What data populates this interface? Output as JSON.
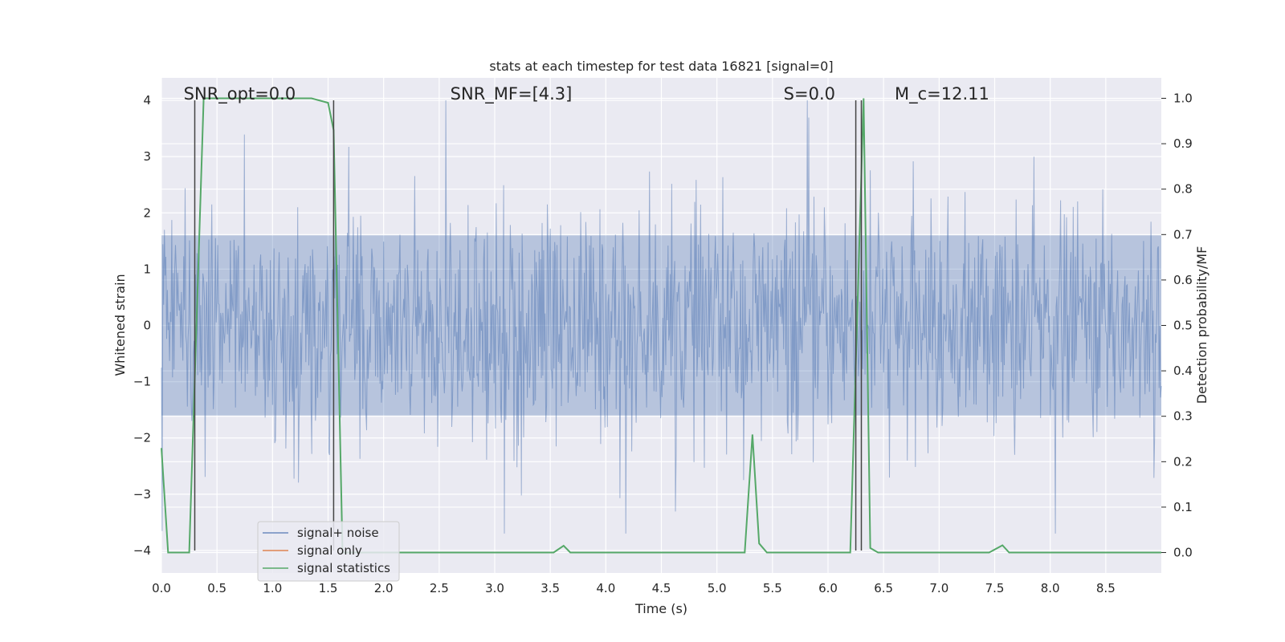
{
  "chart_data": {
    "type": "line",
    "title": "stats at each timestep for test data 16821 [signal=0]",
    "xlabel": "Time (s)",
    "ylabel": "Whitened strain",
    "ylabel_right": "Detection probability/MF",
    "xlim": [
      0.0,
      9.0
    ],
    "ylim": [
      -4.4,
      4.4
    ],
    "ylim_right": [
      -0.045,
      1.045
    ],
    "x_ticks": [
      0.0,
      0.5,
      1.0,
      1.5,
      2.0,
      2.5,
      3.0,
      3.5,
      4.0,
      4.5,
      5.0,
      5.5,
      6.0,
      6.5,
      7.0,
      7.5,
      8.0,
      8.5
    ],
    "x_tick_labels": [
      "0.0",
      "0.5",
      "1.0",
      "1.5",
      "2.0",
      "2.5",
      "3.0",
      "3.5",
      "4.0",
      "4.5",
      "5.0",
      "5.5",
      "6.0",
      "6.5",
      "7.0",
      "7.5",
      "8.0",
      "8.5"
    ],
    "y_ticks": [
      4,
      3,
      2,
      1,
      0,
      -1,
      -2,
      -3,
      -4
    ],
    "y_tick_labels": [
      "4",
      "3",
      "2",
      "1",
      "0",
      "−1",
      "−2",
      "−3",
      "−4"
    ],
    "y_right_ticks": [
      1.0,
      0.9,
      0.8,
      0.7,
      0.6,
      0.5,
      0.4,
      0.3,
      0.2,
      0.1,
      0.0
    ],
    "y_right_tick_labels": [
      "1.0",
      "0.9",
      "0.8",
      "0.7",
      "0.6",
      "0.5",
      "0.4",
      "0.3",
      "0.2",
      "0.1",
      "0.0"
    ],
    "grid": true,
    "legend_position": "lower-left",
    "annotations": [
      {
        "text": "SNR_opt=0.0",
        "x": 0.2
      },
      {
        "text": "SNR_MF=[4.3]",
        "x": 2.6
      },
      {
        "text": "S=0.0",
        "x": 5.6
      },
      {
        "text": "M_c=12.11",
        "x": 6.6
      }
    ],
    "annotation_y": 4.0,
    "vertical_markers": [
      0.3,
      1.55,
      6.25,
      6.3
    ],
    "series": [
      {
        "name": "signal+ noise",
        "color": "#4c72b0",
        "axis": "left",
        "style": "dense-noise",
        "sample_rate": 150,
        "band_typical": [
          -1.6,
          1.6
        ],
        "peak_range": [
          -3.7,
          4.0
        ]
      },
      {
        "name": "signal only",
        "color": "#dd8452",
        "axis": "left",
        "x": [],
        "y": []
      },
      {
        "name": "signal statistics",
        "color": "#55a868",
        "axis": "right",
        "x": [
          0.0,
          0.06,
          0.25,
          0.38,
          1.35,
          1.5,
          1.55,
          1.63,
          3.53,
          3.62,
          3.68,
          5.25,
          5.32,
          5.38,
          5.45,
          6.2,
          6.32,
          6.38,
          6.45,
          7.45,
          7.57,
          7.63,
          9.0
        ],
        "y": [
          0.23,
          0.0,
          0.0,
          1.0,
          1.0,
          0.99,
          0.93,
          0.0,
          0.0,
          0.015,
          0.0,
          0.0,
          0.26,
          0.02,
          0.0,
          0.0,
          1.0,
          0.01,
          0.0,
          0.0,
          0.016,
          0.0,
          0.0
        ]
      }
    ]
  }
}
